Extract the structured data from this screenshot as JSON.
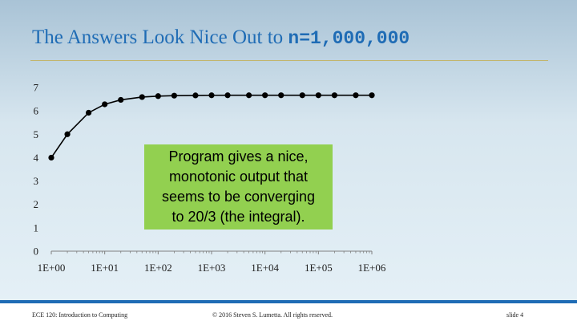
{
  "slide": {
    "title_text": "The Answers Look Nice Out to ",
    "title_code": "n=1,000,000"
  },
  "callout": {
    "lines": [
      "Program gives a nice,",
      "monotonic output that",
      "seems to be converging",
      "to 20/3 (the integral)."
    ],
    "color": "#92d050"
  },
  "footer": {
    "left": "ECE 120: Introduction to Computing",
    "center": "© 2016 Steven S. Lumetta.  All rights reserved.",
    "right": "slide 4"
  },
  "colors": {
    "title": "#1f6cb5",
    "rule": "#c2b46a",
    "footer_bar": "#1f6cb5",
    "series": "#000000"
  },
  "chart_data": {
    "type": "line",
    "x_scale": "log",
    "xlim": [
      1,
      1000000
    ],
    "ylim": [
      0,
      7
    ],
    "x_ticks": [
      "1E+00",
      "1E+01",
      "1E+02",
      "1E+03",
      "1E+04",
      "1E+05",
      "1E+06"
    ],
    "y_ticks": [
      "0",
      "1",
      "2",
      "3",
      "4",
      "5",
      "6",
      "7"
    ],
    "grid": false,
    "legend": "none",
    "series": [
      {
        "x": [
          1,
          2,
          5,
          10,
          20,
          50,
          100,
          200,
          500,
          1000,
          2000,
          5000,
          10000,
          20000,
          50000,
          100000,
          200000,
          500000,
          1000000
        ],
        "y": [
          4.0,
          5.0,
          5.92,
          6.28,
          6.47,
          6.59,
          6.63,
          6.65,
          6.66,
          6.665,
          6.666,
          6.666,
          6.6666,
          6.6666,
          6.6666,
          6.6667,
          6.6667,
          6.6667,
          6.6667
        ]
      }
    ]
  }
}
